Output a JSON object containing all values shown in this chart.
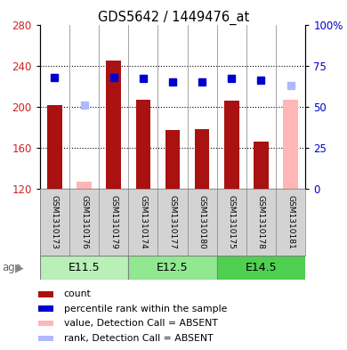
{
  "title": "GDS5642 / 1449476_at",
  "samples": [
    "GSM1310173",
    "GSM1310176",
    "GSM1310179",
    "GSM1310174",
    "GSM1310177",
    "GSM1310180",
    "GSM1310175",
    "GSM1310178",
    "GSM1310181"
  ],
  "bar_values": [
    202,
    null,
    245,
    207,
    177,
    178,
    206,
    166,
    null
  ],
  "bar_absent_values": [
    null,
    127,
    null,
    null,
    null,
    null,
    null,
    null,
    207
  ],
  "rank_values": [
    68,
    null,
    68,
    67,
    65,
    65,
    67,
    66,
    null
  ],
  "rank_absent_values": [
    null,
    51,
    null,
    null,
    null,
    null,
    null,
    null,
    63
  ],
  "age_groups": [
    {
      "label": "E11.5",
      "start": 0,
      "end": 3,
      "color": "#b8f0b8"
    },
    {
      "label": "E12.5",
      "start": 3,
      "end": 6,
      "color": "#90e890"
    },
    {
      "label": "E14.5",
      "start": 6,
      "end": 9,
      "color": "#50d050"
    }
  ],
  "ylim_left": [
    120,
    280
  ],
  "ylim_right": [
    0,
    100
  ],
  "yticks_left": [
    120,
    160,
    200,
    240,
    280
  ],
  "yticks_right": [
    0,
    25,
    50,
    75,
    100
  ],
  "ytick_labels_right": [
    "0",
    "25",
    "50",
    "75",
    "100%"
  ],
  "bar_color": "#aa1111",
  "bar_absent_color": "#ffb6b6",
  "rank_color": "#0000cc",
  "rank_absent_color": "#b0b8ff",
  "grid_color": "black",
  "bg_color": "white",
  "label_color_left": "#cc2222",
  "label_color_right": "#0000cc",
  "bar_width": 0.5,
  "legend_items": [
    {
      "color": "#aa1111",
      "label": "count"
    },
    {
      "color": "#0000cc",
      "label": "percentile rank within the sample"
    },
    {
      "color": "#ffb6b6",
      "label": "value, Detection Call = ABSENT"
    },
    {
      "color": "#b0b8ff",
      "label": "rank, Detection Call = ABSENT"
    }
  ],
  "figsize": [
    3.9,
    3.93
  ],
  "dpi": 100
}
